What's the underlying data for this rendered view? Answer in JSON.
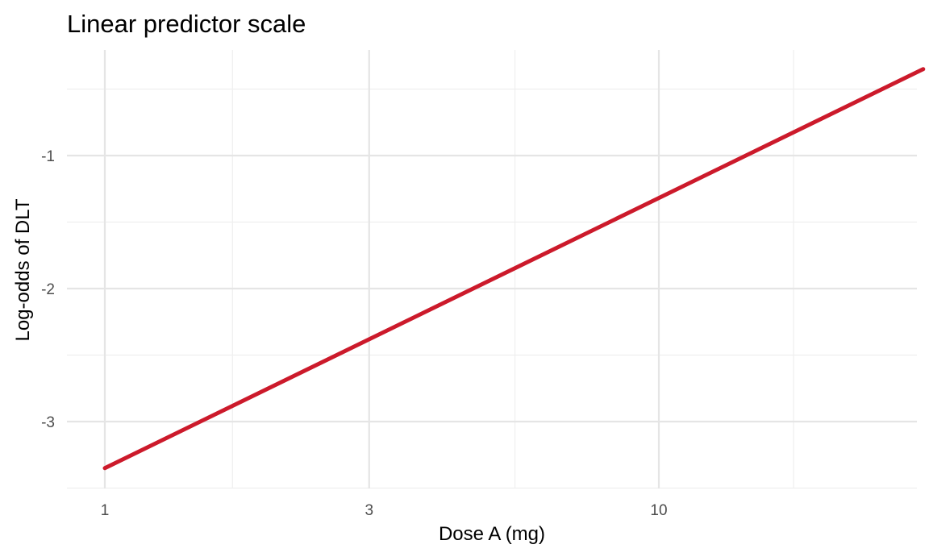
{
  "chart_data": {
    "type": "line",
    "title": "Linear predictor scale",
    "xlabel": "Dose A (mg)",
    "ylabel": "Log-odds of DLT",
    "x_scale": "log10",
    "xlim": [
      1,
      30
    ],
    "ylim": [
      -3.35,
      -0.35
    ],
    "x_ticks": [
      1,
      3,
      10
    ],
    "x_tick_labels": [
      "1",
      "3",
      "10"
    ],
    "x_minor_ticks": [
      1.7,
      5.5,
      17.5
    ],
    "y_ticks": [
      -3,
      -2,
      -1
    ],
    "y_tick_labels": [
      "-3",
      "-2",
      "-1"
    ],
    "y_minor_ticks": [
      -3.5,
      -2.5,
      -1.5,
      -0.5
    ],
    "grid": true,
    "series": [
      {
        "color": "#cc1a2b",
        "x": [
          1,
          30
        ],
        "y": [
          -3.35,
          -0.35
        ]
      }
    ]
  }
}
